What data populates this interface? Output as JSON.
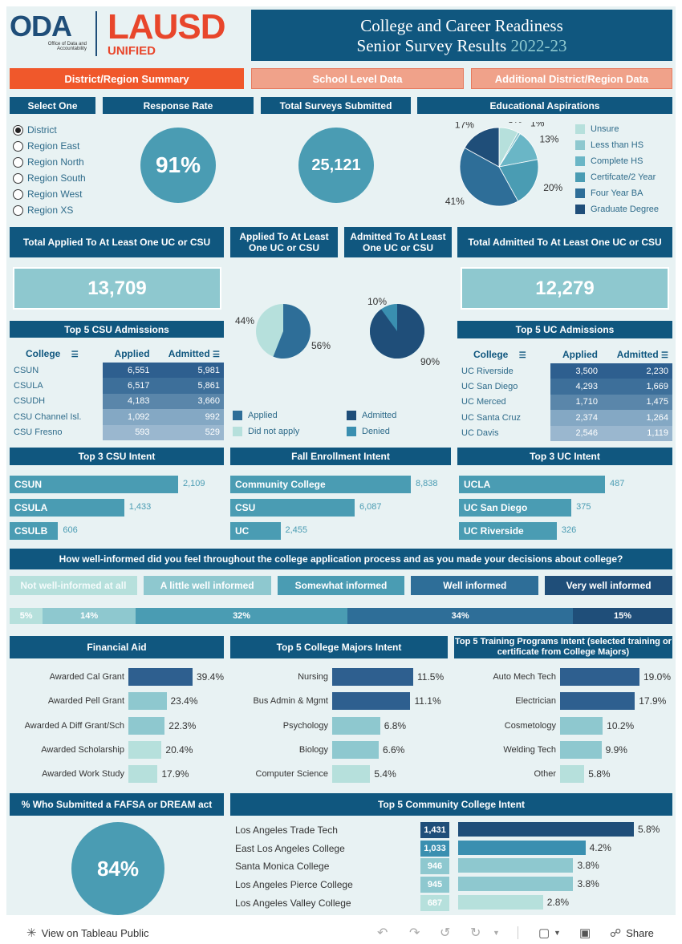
{
  "logo": {
    "oda": "ODA",
    "oda_sub1": "Office of Data and",
    "oda_sub2": "Accountability",
    "lausd": "LAUSD",
    "unified": "UNIFIED"
  },
  "title": {
    "line1": "College and Career Readiness",
    "line2": "Senior Survey Results",
    "year": "2022-23"
  },
  "tabs": [
    "District/Region Summary",
    "School Level Data",
    "Additional District/Region Data"
  ],
  "select": {
    "header": "Select One",
    "options": [
      "District",
      "Region East",
      "Region North",
      "Region South",
      "Region West",
      "Region XS"
    ],
    "selected": 0
  },
  "response_rate": {
    "header": "Response Rate",
    "value": "91%"
  },
  "total_surveys": {
    "header": "Total Surveys Submitted",
    "value": "25,121"
  },
  "aspirations": {
    "header": "Educational Aspirations",
    "legend": [
      {
        "label": "Unsure",
        "color": "#b6e0dc"
      },
      {
        "label": "Less than HS",
        "color": "#8ec8cf"
      },
      {
        "label": "Complete HS",
        "color": "#6ab6c6"
      },
      {
        "label": "Certifcate/2 Year",
        "color": "#4a9cb3"
      },
      {
        "label": "Four Year BA",
        "color": "#2e6e98"
      },
      {
        "label": "Graduate Degree",
        "color": "#1f4e79"
      }
    ],
    "slice_labels": [
      "8%",
      "1%",
      "13%",
      "20%",
      "41%",
      "17%"
    ]
  },
  "uc_csu": {
    "applied_total_header": "Total Applied To At Least One UC or CSU",
    "applied_total": "13,709",
    "admitted_total_header": "Total Admitted To At Least One UC or CSU",
    "admitted_total": "12,279",
    "applied_header": "Applied To At Least One UC or CSU",
    "admitted_header": "Admitted To At Least One UC or CSU",
    "applied_pct": "56%",
    "not_applied_pct": "44%",
    "admitted_pct": "90%",
    "denied_pct": "10%",
    "legend": {
      "applied": "Applied",
      "not_apply": "Did not apply",
      "admitted": "Admitted",
      "denied": "Denied"
    }
  },
  "csu_table": {
    "header": "Top 5 CSU Admissions",
    "cols": [
      "College",
      "Applied",
      "Admitted"
    ],
    "rows": [
      [
        "CSUN",
        "6,551",
        "5,981"
      ],
      [
        "CSULA",
        "6,517",
        "5,861"
      ],
      [
        "CSUDH",
        "4,183",
        "3,660"
      ],
      [
        "CSU Channel Isl.",
        "1,092",
        "992"
      ],
      [
        "CSU Fresno",
        "593",
        "529"
      ]
    ]
  },
  "uc_table": {
    "header": "Top 5 UC Admissions",
    "cols": [
      "College",
      "Applied",
      "Admitted"
    ],
    "rows": [
      [
        "UC Riverside",
        "3,500",
        "2,230"
      ],
      [
        "UC San Diego",
        "4,293",
        "1,669"
      ],
      [
        "UC Merced",
        "1,710",
        "1,475"
      ],
      [
        "UC Santa Cruz",
        "2,374",
        "1,264"
      ],
      [
        "UC Davis",
        "2,546",
        "1,119"
      ]
    ]
  },
  "csu_intent": {
    "header": "Top 3 CSU Intent",
    "rows": [
      {
        "label": "CSUN",
        "value": 2109,
        "text": "2,109"
      },
      {
        "label": "CSULA",
        "value": 1433,
        "text": "1,433"
      },
      {
        "label": "CSULB",
        "value": 606,
        "text": "606"
      }
    ]
  },
  "fall_intent": {
    "header": "Fall Enrollment Intent",
    "rows": [
      {
        "label": "Community College",
        "value": 8838,
        "text": "8,838"
      },
      {
        "label": "CSU",
        "value": 6087,
        "text": "6,087"
      },
      {
        "label": "UC",
        "value": 2455,
        "text": "2,455"
      }
    ]
  },
  "uc_intent": {
    "header": "Top 3 UC Intent",
    "rows": [
      {
        "label": "UCLA",
        "value": 487,
        "text": "487"
      },
      {
        "label": "UC San Diego",
        "value": 375,
        "text": "375"
      },
      {
        "label": "UC Riverside",
        "value": 326,
        "text": "326"
      }
    ]
  },
  "informed": {
    "question": "How well-informed did you feel throughout the college application process and as you made your decisions about college?",
    "categories": [
      "Not well-informed at all",
      "A little well informed",
      "Somewhat informed",
      "Well informed",
      "Very well informed"
    ],
    "colors": [
      "#b6e0dc",
      "#8ec8cf",
      "#4a9cb3",
      "#2e6e98",
      "#1f4e79"
    ],
    "pcts": [
      5,
      14,
      32,
      34,
      15
    ],
    "pct_labels": [
      "5%",
      "14%",
      "32%",
      "34%",
      "15%"
    ]
  },
  "financial_aid": {
    "header": "Financial Aid",
    "rows": [
      {
        "label": "Awarded Cal Grant",
        "value": 39.4,
        "text": "39.4%",
        "color": "#2e5f8f"
      },
      {
        "label": "Awarded Pell Grant",
        "value": 23.4,
        "text": "23.4%",
        "color": "#8ec8cf"
      },
      {
        "label": "Awarded A Diff Grant/Sch",
        "value": 22.3,
        "text": "22.3%",
        "color": "#8ec8cf"
      },
      {
        "label": "Awarded Scholarship",
        "value": 20.4,
        "text": "20.4%",
        "color": "#b6e0dc"
      },
      {
        "label": "Awarded Work Study",
        "value": 17.9,
        "text": "17.9%",
        "color": "#b6e0dc"
      }
    ]
  },
  "majors": {
    "header": "Top 5 College Majors Intent",
    "rows": [
      {
        "label": "Nursing",
        "value": 11.5,
        "text": "11.5%",
        "color": "#2e5f8f"
      },
      {
        "label": "Bus Admin & Mgmt",
        "value": 11.1,
        "text": "11.1%",
        "color": "#2e5f8f"
      },
      {
        "label": "Psychology",
        "value": 6.8,
        "text": "6.8%",
        "color": "#8ec8cf"
      },
      {
        "label": "Biology",
        "value": 6.6,
        "text": "6.6%",
        "color": "#8ec8cf"
      },
      {
        "label": "Computer Science",
        "value": 5.4,
        "text": "5.4%",
        "color": "#b6e0dc"
      }
    ]
  },
  "training": {
    "header": "Top 5 Training Programs Intent (selected training or certificate from College Majors)",
    "rows": [
      {
        "label": "Auto Mech Tech",
        "value": 19.0,
        "text": "19.0%",
        "color": "#2e5f8f"
      },
      {
        "label": "Electrician",
        "value": 17.9,
        "text": "17.9%",
        "color": "#2e5f8f"
      },
      {
        "label": "Cosmetology",
        "value": 10.2,
        "text": "10.2%",
        "color": "#8ec8cf"
      },
      {
        "label": "Welding Tech",
        "value": 9.9,
        "text": "9.9%",
        "color": "#8ec8cf"
      },
      {
        "label": "Other",
        "value": 5.8,
        "text": "5.8%",
        "color": "#b6e0dc"
      }
    ]
  },
  "fafsa": {
    "header": "% Who Submitted a FAFSA or DREAM act",
    "value": "84%"
  },
  "cc_intent": {
    "header": "Top 5 Community College Intent",
    "rows": [
      {
        "label": "Los Angeles Trade Tech",
        "count": "1,431",
        "value": 5.8,
        "text": "5.8%",
        "color": "#1f4e79"
      },
      {
        "label": "East Los Angeles College",
        "count": "1,033",
        "value": 4.2,
        "text": "4.2%",
        "color": "#3a8fb0"
      },
      {
        "label": "Santa Monica College",
        "count": "946",
        "value": 3.8,
        "text": "3.8%",
        "color": "#8ec8cf"
      },
      {
        "label": "Los Angeles Pierce College",
        "count": "945",
        "value": 3.8,
        "text": "3.8%",
        "color": "#8ec8cf"
      },
      {
        "label": "Los Angeles Valley College",
        "count": "687",
        "value": 2.8,
        "text": "2.8%",
        "color": "#b6e0dc"
      }
    ]
  },
  "footer": {
    "view": "View on Tableau Public",
    "share": "Share"
  }
}
